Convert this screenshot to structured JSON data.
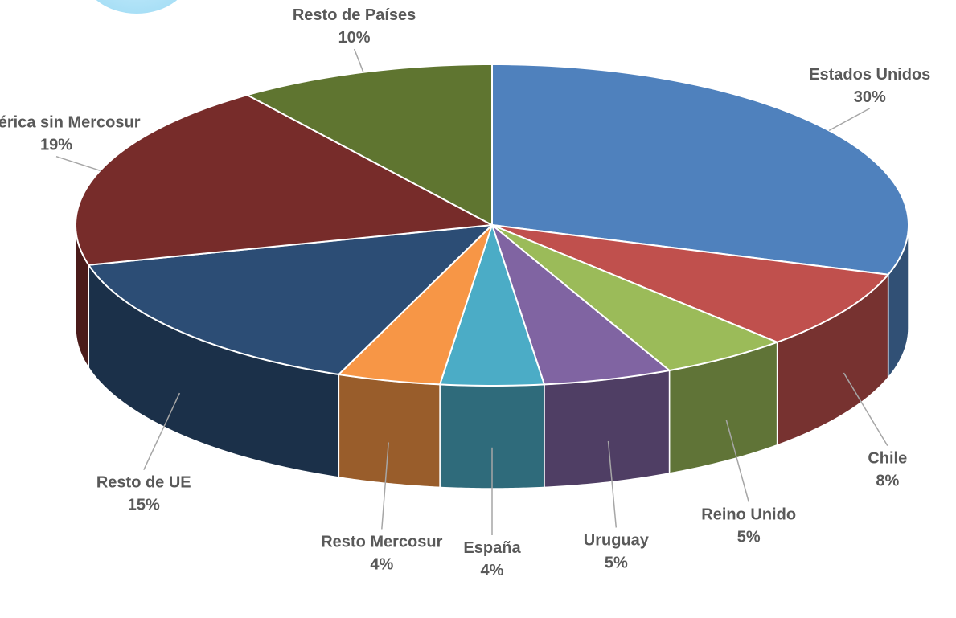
{
  "chart_data": {
    "type": "pie",
    "style": "3d",
    "slices": [
      {
        "label": "Estados Unidos",
        "value": 30,
        "value_label": "30%",
        "color": "#4f81bd"
      },
      {
        "label": "Chile",
        "value": 8,
        "value_label": "8%",
        "color": "#c0504d"
      },
      {
        "label": "Reino Unido",
        "value": 5,
        "value_label": "5%",
        "color": "#9bbb59"
      },
      {
        "label": "Uruguay",
        "value": 5,
        "value_label": "5%",
        "color": "#8064a2"
      },
      {
        "label": "España",
        "value": 4,
        "value_label": "4%",
        "color": "#4bacc6"
      },
      {
        "label": "Resto Mercosur",
        "value": 4,
        "value_label": "4%",
        "color": "#f79646"
      },
      {
        "label": "Resto de UE",
        "value": 15,
        "value_label": "15%",
        "color": "#2c4d75"
      },
      {
        "label": "América sin Mercosur",
        "value": 19,
        "value_label": "19%",
        "color": "#772c2a"
      },
      {
        "label": "Resto de  Países",
        "value": 10,
        "value_label": "10%",
        "color": "#5f7530"
      }
    ]
  }
}
